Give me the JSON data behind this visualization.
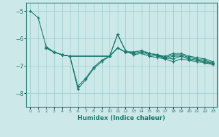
{
  "xlabel": "Humidex (Indice chaleur)",
  "xlim": [
    -0.5,
    23.5
  ],
  "ylim": [
    -8.5,
    -4.7
  ],
  "yticks": [
    -8,
    -7,
    -6,
    -5
  ],
  "xticks": [
    0,
    1,
    2,
    3,
    4,
    5,
    6,
    7,
    8,
    9,
    10,
    11,
    12,
    13,
    14,
    15,
    16,
    17,
    18,
    19,
    20,
    21,
    22,
    23
  ],
  "bg_color": "#cce8e8",
  "grid_color": "#99cccc",
  "line_color": "#1a7a6e",
  "line1_x": [
    0,
    1,
    2,
    3,
    4,
    5,
    6,
    7,
    8,
    9,
    10,
    11,
    12,
    13,
    14,
    15,
    16,
    17,
    18,
    19,
    20,
    21,
    22,
    23
  ],
  "line1_y": [
    -5.0,
    -5.25,
    -6.3,
    -6.5,
    -6.6,
    -6.65,
    -7.75,
    -7.45,
    -7.05,
    -6.8,
    -6.65,
    -5.85,
    -6.45,
    -6.6,
    -6.55,
    -6.65,
    -6.7,
    -6.75,
    -6.85,
    -6.75,
    -6.8,
    -6.85,
    -6.9,
    -6.95
  ],
  "line2_x": [
    2,
    3,
    4,
    5,
    6,
    7,
    8,
    9,
    10,
    11,
    12,
    13,
    14,
    15,
    16,
    17,
    18,
    19,
    20,
    21,
    22,
    23
  ],
  "line2_y": [
    -6.35,
    -6.5,
    -6.6,
    -6.65,
    -7.85,
    -7.5,
    -7.1,
    -6.85,
    -6.65,
    -5.85,
    -6.45,
    -6.55,
    -6.5,
    -6.6,
    -6.65,
    -6.7,
    -6.75,
    -6.65,
    -6.75,
    -6.8,
    -6.85,
    -6.9
  ],
  "line3_x": [
    2,
    3,
    4,
    5,
    10,
    11,
    12,
    13,
    14,
    15,
    16,
    17,
    18,
    19,
    20,
    21,
    22,
    23
  ],
  "line3_y": [
    -6.35,
    -6.5,
    -6.6,
    -6.65,
    -6.65,
    -6.35,
    -6.5,
    -6.5,
    -6.45,
    -6.55,
    -6.6,
    -6.65,
    -6.55,
    -6.55,
    -6.65,
    -6.7,
    -6.75,
    -6.85
  ],
  "line4_x": [
    2,
    3,
    4,
    5,
    10,
    11,
    12,
    13,
    14,
    15,
    16,
    17,
    18,
    19,
    20,
    21,
    22,
    23
  ],
  "line4_y": [
    -6.35,
    -6.5,
    -6.6,
    -6.65,
    -6.65,
    -6.35,
    -6.5,
    -6.5,
    -6.45,
    -6.55,
    -6.6,
    -6.7,
    -6.6,
    -6.6,
    -6.7,
    -6.75,
    -6.8,
    -6.9
  ],
  "line5_x": [
    2,
    3,
    4,
    5,
    10,
    11,
    12,
    13,
    14,
    15,
    16,
    17,
    18,
    19,
    20,
    21,
    22,
    23
  ],
  "line5_y": [
    -6.35,
    -6.5,
    -6.6,
    -6.65,
    -6.65,
    -6.35,
    -6.5,
    -6.5,
    -6.45,
    -6.55,
    -6.6,
    -6.75,
    -6.65,
    -6.65,
    -6.75,
    -6.8,
    -6.85,
    -6.95
  ]
}
